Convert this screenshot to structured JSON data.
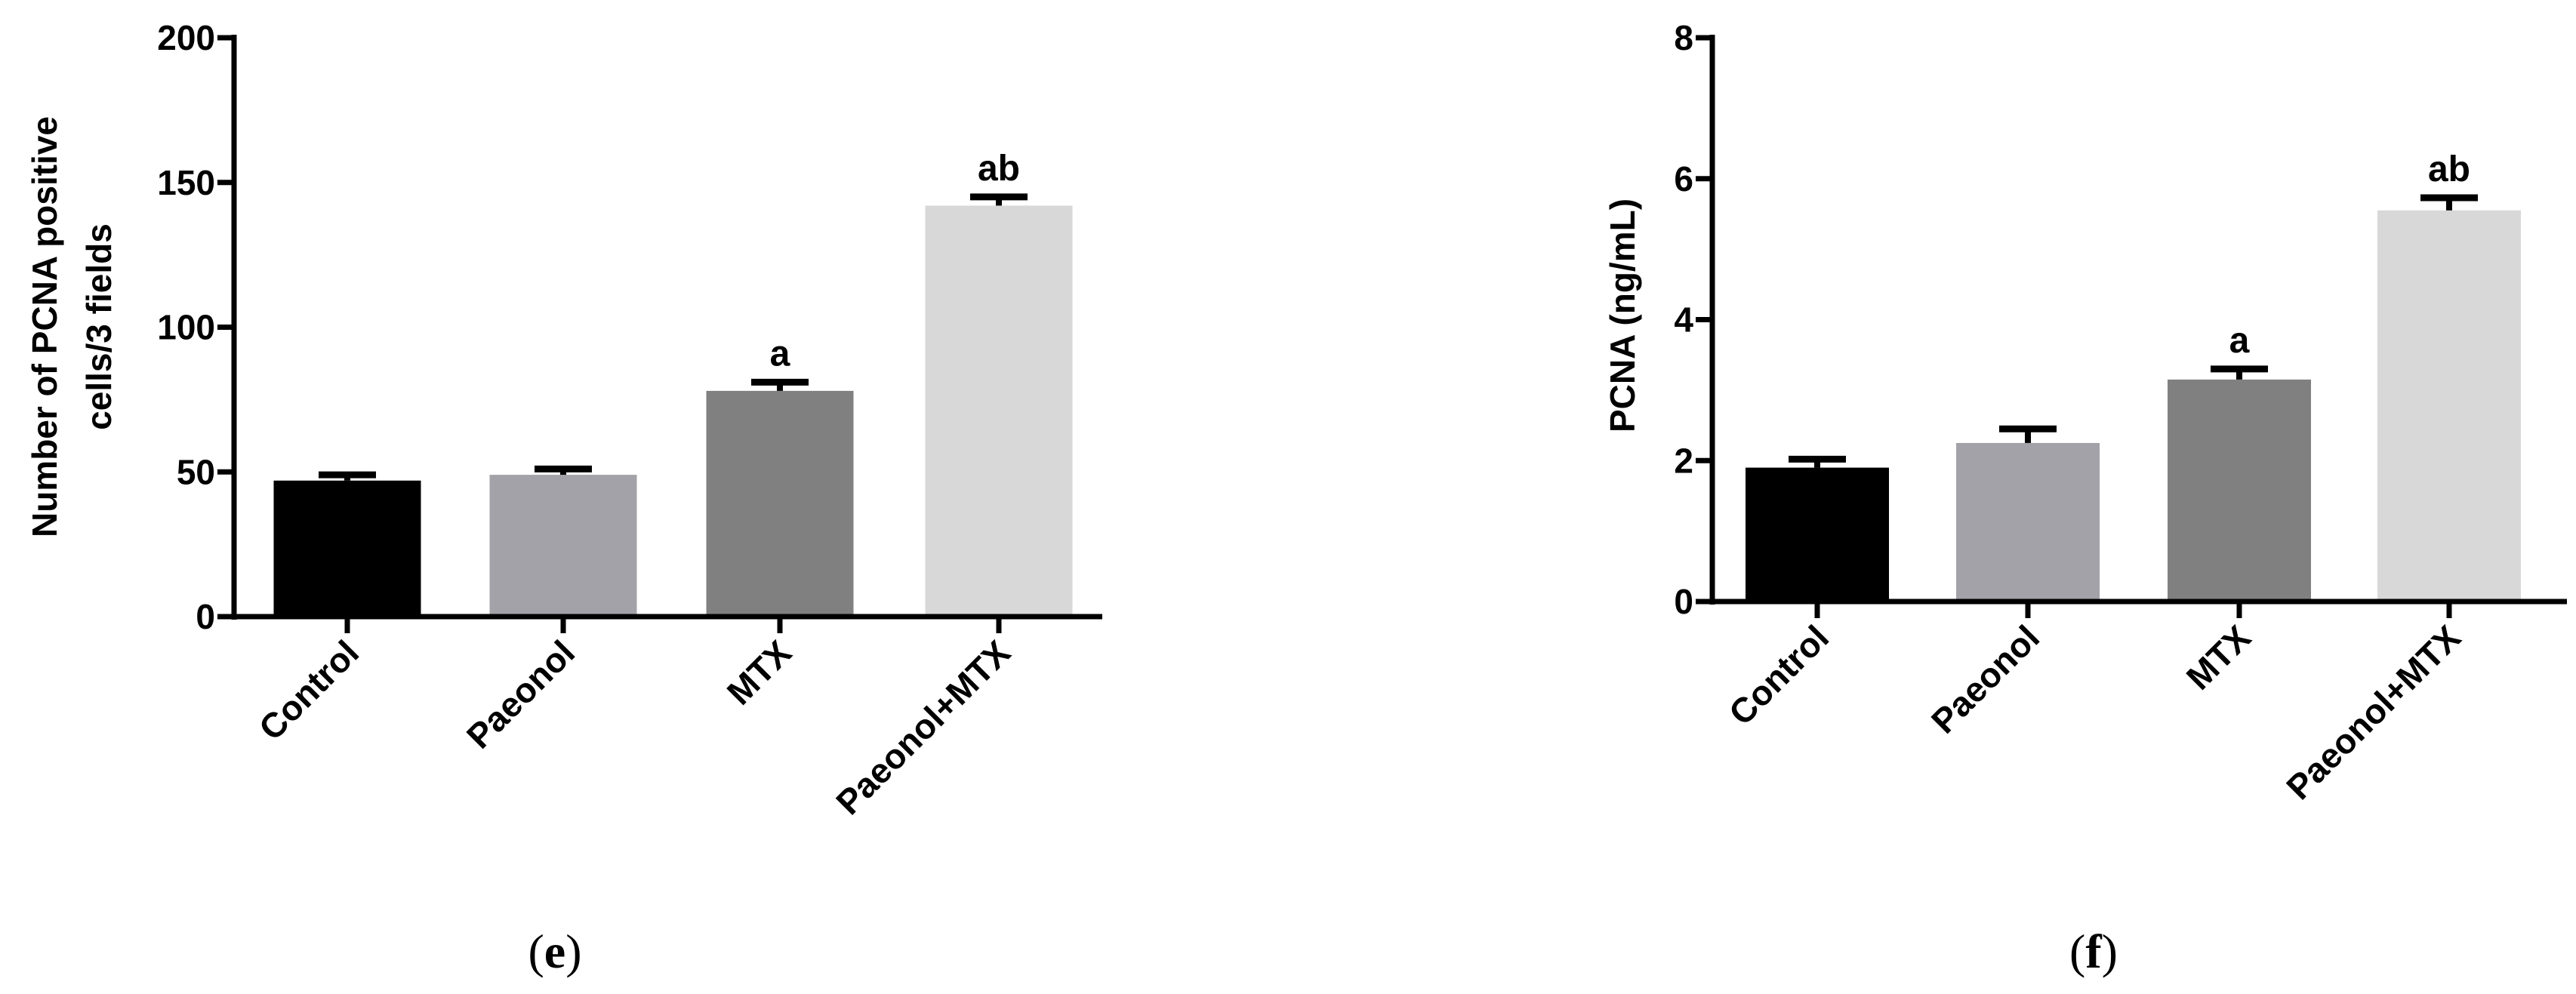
{
  "chart_data": [
    {
      "type": "bar",
      "panel_label": "(e)",
      "panel_letter": "e",
      "categories": [
        "Control",
        "Paeonol",
        "MTX",
        "Paeonol+MTX"
      ],
      "values": [
        47,
        49,
        78,
        142
      ],
      "error": [
        2,
        2,
        3,
        3
      ],
      "annotations": [
        "",
        "",
        "a",
        "ab"
      ],
      "ylabel": "Number of PCNA positive cells/3 fields",
      "ylabel_lines": [
        "Number of PCNA positive",
        "cells/3 fields"
      ],
      "xlabel": "",
      "ylim": [
        0,
        200
      ],
      "yticks": [
        0,
        50,
        100,
        150,
        200
      ],
      "bar_colors": [
        "#000000",
        "#a2a2a8",
        "#808080",
        "#d8d8d8"
      ]
    },
    {
      "type": "bar",
      "panel_label": "(f)",
      "panel_letter": "f",
      "categories": [
        "Control",
        "Paeonol",
        "MTX",
        "Paeonol+MTX"
      ],
      "values": [
        1.9,
        2.25,
        3.15,
        5.55
      ],
      "error": [
        0.12,
        0.2,
        0.15,
        0.18
      ],
      "annotations": [
        "",
        "",
        "a",
        "ab"
      ],
      "ylabel": "PCNA (ng/mL)",
      "ylabel_lines": [
        "PCNA (ng/mL)"
      ],
      "xlabel": "",
      "ylim": [
        0,
        8
      ],
      "yticks": [
        0,
        2,
        4,
        6,
        8
      ],
      "bar_colors": [
        "#000000",
        "#a2a2a8",
        "#808080",
        "#d8d8d8"
      ]
    }
  ]
}
